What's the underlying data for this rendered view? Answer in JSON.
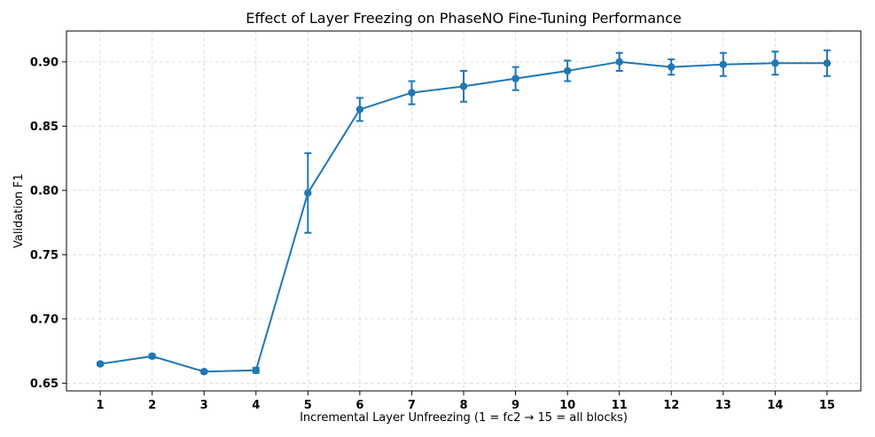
{
  "chart_data": {
    "type": "line",
    "title": "Effect of Layer Freezing on PhaseNO Fine-Tuning Performance",
    "xlabel": "Incremental Layer Unfreezing (1 = fc2 → 15 = all blocks)",
    "ylabel": "Validation F1",
    "x": [
      1,
      2,
      3,
      4,
      5,
      6,
      7,
      8,
      9,
      10,
      11,
      12,
      13,
      14,
      15
    ],
    "xtick_labels": [
      "1",
      "2",
      "3",
      "4",
      "5",
      "6",
      "7",
      "8",
      "9",
      "10",
      "11",
      "12",
      "13",
      "14",
      "15"
    ],
    "xlim": [
      0.35,
      15.65
    ],
    "ylim": [
      0.644,
      0.924
    ],
    "yticks": [
      0.65,
      0.7,
      0.75,
      0.8,
      0.85,
      0.9
    ],
    "ytick_labels": [
      "0.65",
      "0.70",
      "0.75",
      "0.80",
      "0.85",
      "0.90"
    ],
    "grid": true,
    "series": [
      {
        "color": "#1f77b4",
        "values": [
          0.665,
          0.671,
          0.659,
          0.66,
          0.798,
          0.863,
          0.876,
          0.881,
          0.887,
          0.893,
          0.9,
          0.896,
          0.898,
          0.899,
          0.899
        ],
        "error": [
          0.001,
          0.0015,
          0.001,
          0.002,
          0.031,
          0.009,
          0.009,
          0.012,
          0.009,
          0.008,
          0.007,
          0.006,
          0.009,
          0.009,
          0.01
        ]
      }
    ]
  }
}
